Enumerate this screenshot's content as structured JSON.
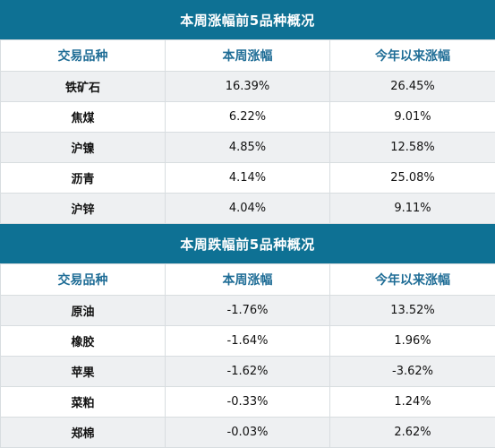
{
  "gainers": {
    "title": "本周涨幅前5品种概况",
    "headers": [
      "交易品种",
      "本周涨幅",
      "今年以来涨幅"
    ],
    "rows": [
      [
        "铁矿石",
        "16.39%",
        "26.45%"
      ],
      [
        "焦煤",
        "6.22%",
        "9.01%"
      ],
      [
        "沪镍",
        "4.85%",
        "12.58%"
      ],
      [
        "沥青",
        "4.14%",
        "25.08%"
      ],
      [
        "沪锌",
        "4.04%",
        "9.11%"
      ]
    ]
  },
  "losers": {
    "title": "本周跌幅前5品种概况",
    "headers": [
      "交易品种",
      "本周涨幅",
      "今年以来涨幅"
    ],
    "rows": [
      [
        "原油",
        "-1.76%",
        "13.52%"
      ],
      [
        "橡胶",
        "-1.64%",
        "1.96%"
      ],
      [
        "苹果",
        "-1.62%",
        "-3.62%"
      ],
      [
        "菜粕",
        "-0.33%",
        "1.24%"
      ],
      [
        "郑棉",
        "-0.03%",
        "2.62%"
      ]
    ]
  },
  "colors": {
    "header_bg": "#0e7194",
    "header_text": "#1f6d96",
    "row_alt": "#eef0f2"
  }
}
